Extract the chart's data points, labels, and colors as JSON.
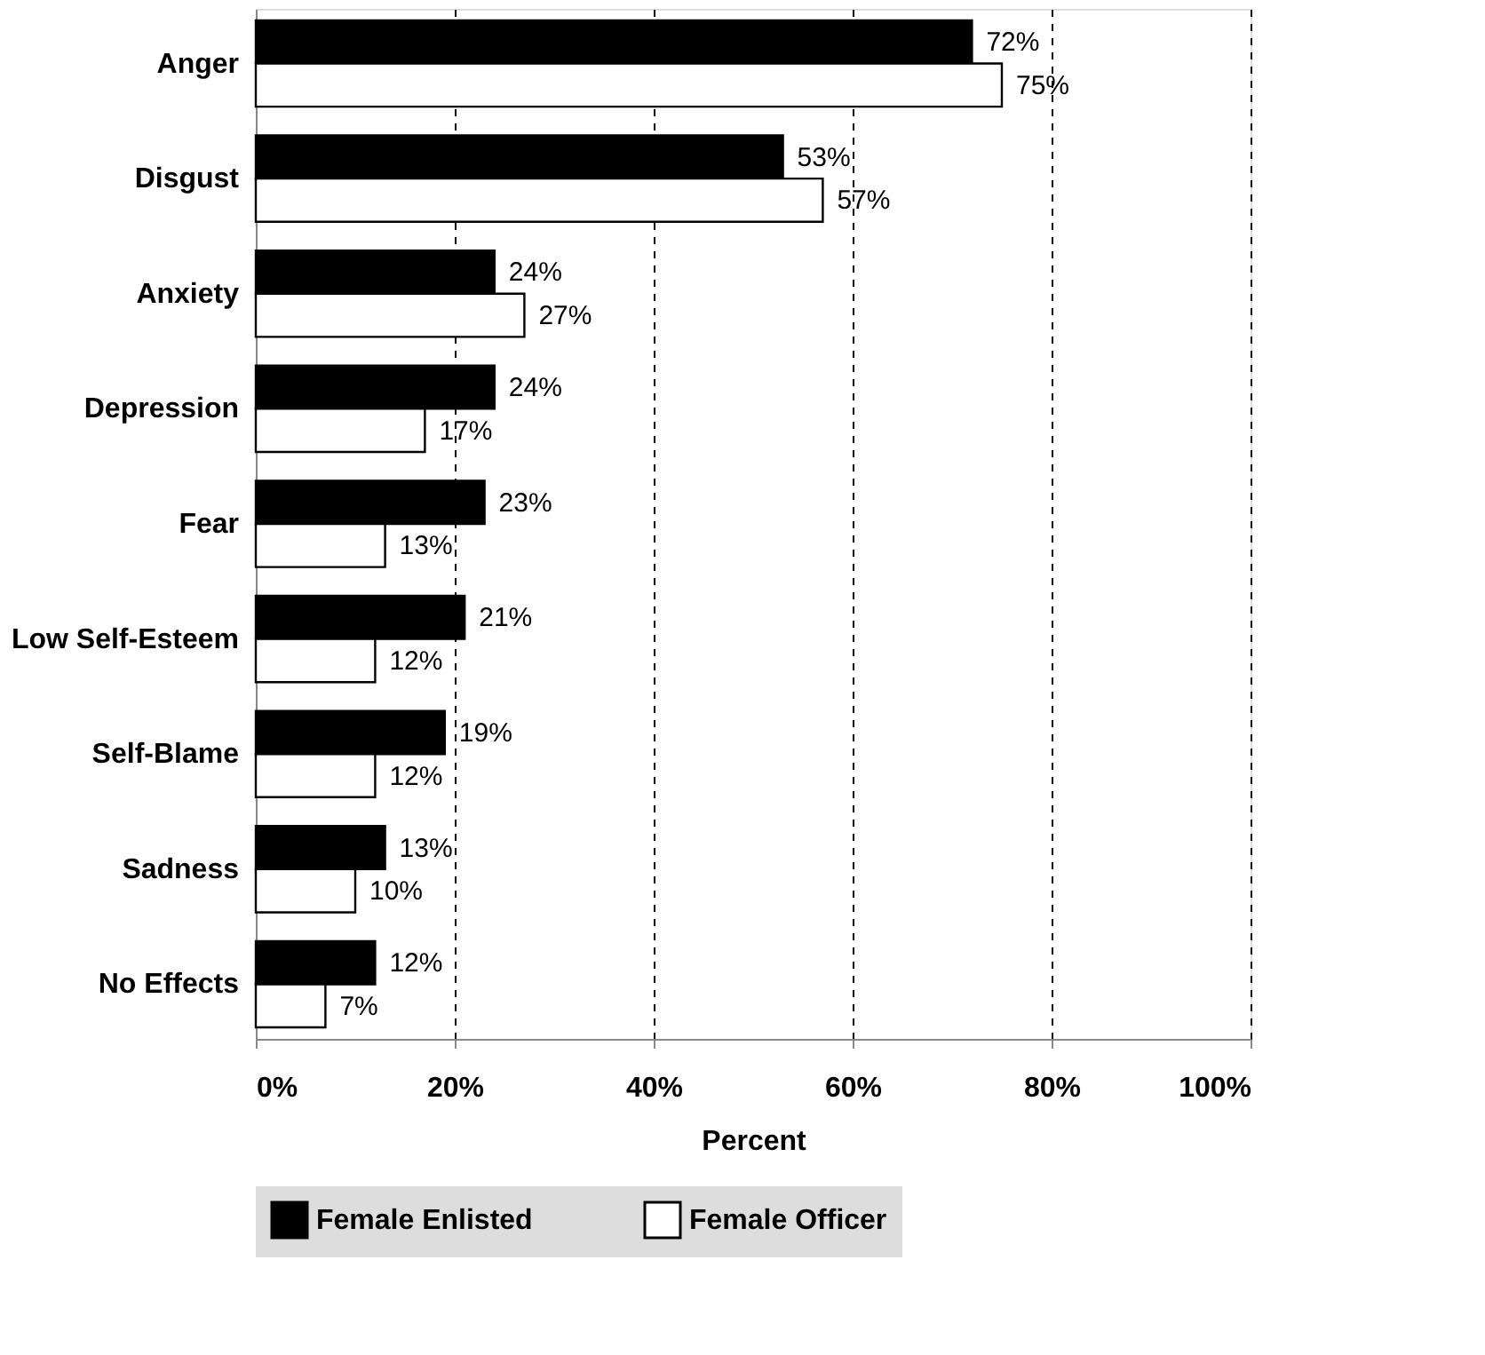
{
  "chart_data": {
    "type": "bar",
    "orientation": "horizontal",
    "categories": [
      "Anger",
      "Disgust",
      "Anxiety",
      "Depression",
      "Fear",
      "Low Self-Esteem",
      "Self-Blame",
      "Sadness",
      "No Effects"
    ],
    "series": [
      {
        "name": "Female Enlisted",
        "color": "#000000",
        "values": [
          72,
          53,
          24,
          24,
          23,
          21,
          19,
          13,
          12
        ],
        "value_labels": [
          "72%",
          "53%",
          "24%",
          "24%",
          "23%",
          "21%",
          "19%",
          "13%",
          "12%"
        ]
      },
      {
        "name": "Female Officer",
        "color": "#ffffff",
        "values": [
          75,
          57,
          27,
          17,
          13,
          12,
          12,
          10,
          7
        ],
        "value_labels": [
          "75%",
          "57%",
          "27%",
          "17%",
          "13%",
          "12%",
          "12%",
          "10%",
          "7%"
        ]
      }
    ],
    "xlim": [
      0,
      100
    ],
    "xticks": [
      {
        "value": 0,
        "label": "0%"
      },
      {
        "value": 20,
        "label": "20%"
      },
      {
        "value": 40,
        "label": "40%"
      },
      {
        "value": 60,
        "label": "60%"
      },
      {
        "value": 80,
        "label": "80%"
      },
      {
        "value": 100,
        "label": "100%"
      }
    ],
    "xlabel": "Percent",
    "grid": "x",
    "legend": "bottom"
  }
}
